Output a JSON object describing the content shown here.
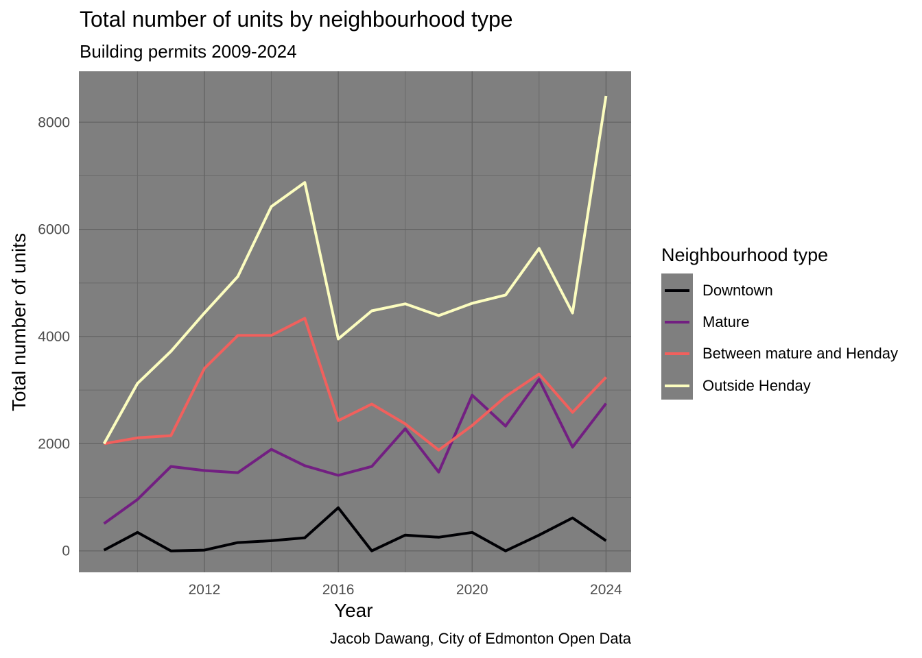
{
  "chart_data": {
    "type": "line",
    "title": "Total number of units by neighbourhood type",
    "subtitle": "Building permits 2009-2024",
    "caption": "Jacob Dawang, City of Edmonton Open Data",
    "xlabel": "Year",
    "ylabel": "Total number of units",
    "xlim": [
      2008.25,
      2024.75
    ],
    "ylim": [
      -400,
      8950
    ],
    "xticks": [
      2012,
      2016,
      2020,
      2024
    ],
    "yticks": [
      0,
      2000,
      4000,
      6000,
      8000
    ],
    "grid": true,
    "panel_background": "#7f7f7f",
    "legend": {
      "title": "Neighbourhood type",
      "placement": "right"
    },
    "x": [
      2009,
      2010,
      2011,
      2012,
      2013,
      2014,
      2015,
      2016,
      2017,
      2018,
      2019,
      2020,
      2021,
      2022,
      2023,
      2024
    ],
    "series": [
      {
        "name": "Downtown",
        "color": "#000004",
        "values": [
          15,
          345,
          0,
          15,
          155,
          190,
          245,
          805,
          0,
          295,
          255,
          345,
          0,
          295,
          615,
          190
        ]
      },
      {
        "name": "Mature",
        "color": "#721f81",
        "values": [
          510,
          960,
          1575,
          1500,
          1460,
          1895,
          1590,
          1410,
          1575,
          2280,
          1470,
          2905,
          2330,
          3200,
          1935,
          2750
        ]
      },
      {
        "name": "Between mature and Henday",
        "color": "#f1605d",
        "values": [
          2000,
          2110,
          2150,
          3405,
          4020,
          4020,
          4340,
          2430,
          2740,
          2370,
          1880,
          2340,
          2880,
          3300,
          2585,
          3240
        ]
      },
      {
        "name": "Outside Henday",
        "color": "#fcfdbf",
        "values": [
          2000,
          3125,
          3725,
          4440,
          5120,
          6425,
          6875,
          3955,
          4480,
          4610,
          4390,
          4620,
          4775,
          5645,
          4440,
          8490
        ]
      }
    ]
  }
}
